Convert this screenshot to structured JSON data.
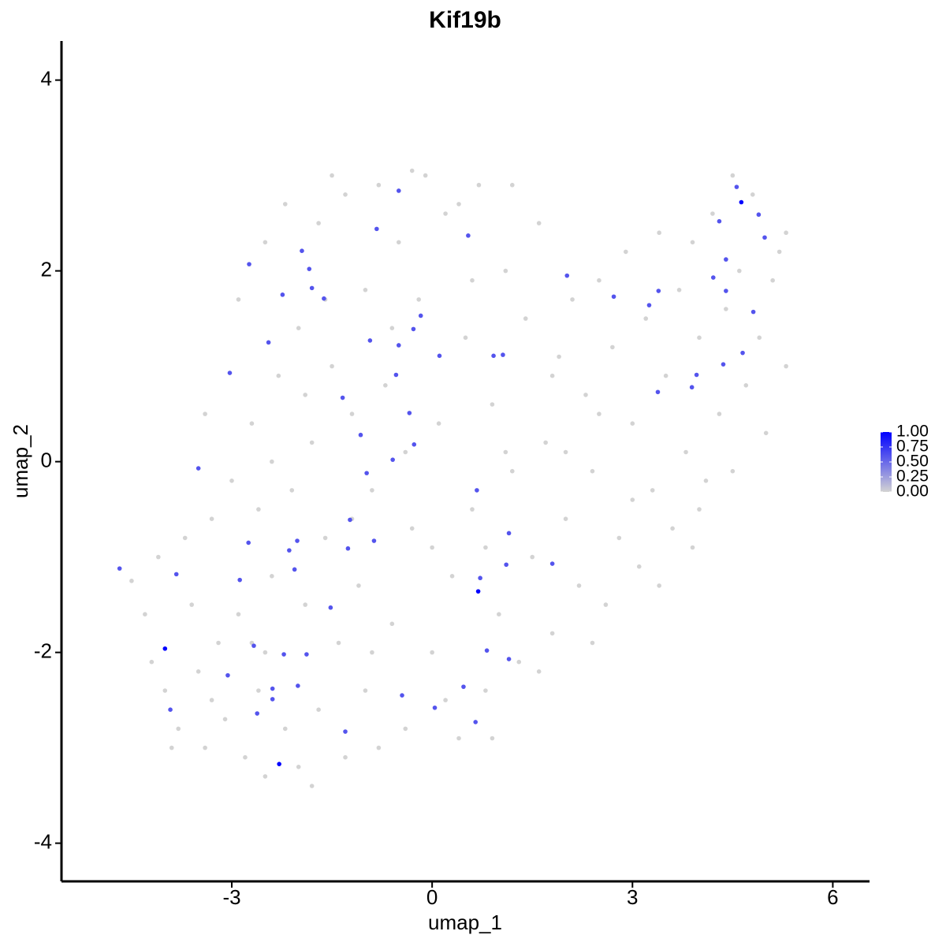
{
  "chart_data": {
    "type": "scatter",
    "title": "Kif19b",
    "x_label": "umap_1",
    "y_label": "umap_2",
    "xlim": [
      -5.55,
      6.55
    ],
    "ylim": [
      -4.4,
      4.41
    ],
    "xticks": [
      -3,
      0,
      3,
      6
    ],
    "yticks": [
      -4,
      -2,
      0,
      2,
      4
    ],
    "grid": false,
    "colorbar": {
      "lim": [
        0,
        1
      ],
      "low_color": "#d3d3d3",
      "high_color": "#0000ff",
      "ticks": [
        {
          "value": 0,
          "label": "0.00"
        },
        {
          "value": 0.25,
          "label": "0.25"
        },
        {
          "value": 0.5,
          "label": "0.50"
        },
        {
          "value": 0.75,
          "label": "0.75"
        },
        {
          "value": 1,
          "label": "1.00"
        }
      ]
    },
    "x": [
      -4.5,
      -4.3,
      -4.2,
      -4.0,
      -3.8,
      -3.6,
      -3.5,
      -3.4,
      -3.3,
      -3.2,
      -3.1,
      -3.0,
      -2.9,
      -2.8,
      -2.7,
      -2.6,
      -2.5,
      -2.5,
      -2.4,
      -2.3,
      -2.2,
      -2.1,
      -2.0,
      -2.0,
      -1.9,
      -1.8,
      -1.7,
      -1.7,
      -1.6,
      -1.5,
      -1.4,
      -1.3,
      -1.3,
      -1.2,
      -1.1,
      -1.0,
      -1.0,
      -0.9,
      -0.8,
      -0.8,
      -0.7,
      -0.6,
      -0.5,
      -0.4,
      -0.3,
      -0.2,
      -0.1,
      0.0,
      0.1,
      0.2,
      0.3,
      0.4,
      0.5,
      0.6,
      0.7,
      0.8,
      0.9,
      1.0,
      1.1,
      1.2,
      1.3,
      1.4,
      1.5,
      1.6,
      1.7,
      1.8,
      1.9,
      2.0,
      2.1,
      2.2,
      2.3,
      2.4,
      2.5,
      2.6,
      2.7,
      2.8,
      2.9,
      3.0,
      3.1,
      3.2,
      3.3,
      3.4,
      3.5,
      3.6,
      3.7,
      3.8,
      3.9,
      4.0,
      4.1,
      4.2,
      4.3,
      4.4,
      4.5,
      4.6,
      4.7,
      4.8,
      4.9,
      5.0,
      5.1,
      5.2,
      5.3,
      5.3,
      4.5,
      -2.5,
      -2.9,
      -2.2,
      -1.5,
      -0.3,
      0.4,
      1.2,
      -3.4,
      -3.7,
      -3.9,
      -4.1,
      -2.6,
      -1.8,
      -0.9,
      0.2,
      0.9,
      1.6,
      2.4,
      3.4,
      3.9,
      1.8,
      0.6,
      -0.6,
      -1.9,
      -2.7,
      -3.3,
      -1.2,
      0.0,
      1.1,
      2.0,
      3.0,
      -2.4,
      -1.6,
      -0.4,
      0.8,
      2.5,
      4.0,
      -4.68,
      -3.83,
      -4.0,
      -3.92,
      -3.5,
      -3.03,
      -2.74,
      -2.45,
      -2.24,
      -1.95,
      -1.84,
      -1.8,
      -1.62,
      -1.34,
      -1.07,
      -0.98,
      -1.23,
      -1.26,
      -0.87,
      -0.83,
      -0.5,
      -0.93,
      -0.5,
      -0.54,
      -0.34,
      -0.28,
      -0.17,
      -0.27,
      -0.59,
      0.11,
      0.54,
      0.92,
      1.06,
      0.67,
      1.15,
      1.11,
      0.72,
      0.69,
      1.8,
      0.82,
      1.15,
      0.47,
      0.65,
      0.04,
      -0.45,
      -1.3,
      -1.52,
      -1.88,
      -2.01,
      -2.22,
      -2.39,
      -2.39,
      -2.62,
      -2.67,
      -3.06,
      -2.29,
      -2.06,
      -2.02,
      -2.14,
      -2.75,
      -2.88,
      2.02,
      2.72,
      3.25,
      3.39,
      3.38,
      3.89,
      3.96,
      4.21,
      4.4,
      4.36,
      4.65,
      4.81,
      4.4,
      4.3,
      4.56,
      4.63,
      4.89,
      4.98
    ],
    "y": [
      -1.25,
      -1.6,
      -2.1,
      -2.4,
      -2.8,
      -1.5,
      -2.2,
      -3.0,
      -0.6,
      -1.9,
      -2.7,
      -0.2,
      -1.6,
      -3.1,
      0.4,
      -0.5,
      -2.0,
      -3.3,
      -1.2,
      0.9,
      -2.8,
      -0.3,
      1.4,
      -3.2,
      -1.5,
      0.2,
      2.5,
      -2.6,
      -0.8,
      1.0,
      -1.9,
      2.8,
      -3.1,
      0.5,
      -1.3,
      1.8,
      -2.4,
      -0.3,
      2.9,
      -3.0,
      0.8,
      -1.7,
      2.3,
      -2.8,
      -0.7,
      1.7,
      3.0,
      -2.0,
      0.4,
      2.6,
      -1.2,
      -2.9,
      1.3,
      -0.5,
      2.9,
      -2.4,
      0.6,
      -1.6,
      2.0,
      -0.1,
      -2.1,
      1.5,
      -1.0,
      2.5,
      0.2,
      -1.8,
      1.1,
      -0.6,
      1.7,
      -1.3,
      0.7,
      -0.1,
      1.9,
      -1.5,
      1.2,
      -0.8,
      2.2,
      0.4,
      -1.1,
      1.5,
      -0.3,
      2.4,
      0.9,
      -0.7,
      1.8,
      0.1,
      2.3,
      1.3,
      -0.2,
      2.6,
      0.5,
      1.6,
      -0.1,
      2.0,
      0.8,
      2.8,
      1.3,
      0.3,
      1.9,
      2.2,
      1.0,
      2.4,
      3.0,
      2.3,
      1.7,
      2.7,
      3.0,
      3.05,
      2.7,
      2.9,
      0.5,
      -0.8,
      -3.0,
      -1.0,
      -2.4,
      -3.4,
      -2.0,
      -2.5,
      -2.9,
      -2.2,
      -1.9,
      -1.3,
      -0.9,
      0.9,
      1.9,
      1.4,
      0.7,
      -1.9,
      -2.5,
      -0.6,
      -0.9,
      0.1,
      0.1,
      -0.4,
      0.0,
      1.7,
      0.1,
      -0.9,
      0.5,
      -0.5,
      -1.12,
      -1.18,
      -1.96,
      -2.6,
      -0.07,
      0.93,
      2.07,
      1.25,
      1.75,
      2.21,
      2.02,
      1.82,
      1.71,
      0.67,
      0.28,
      -0.12,
      -0.61,
      -0.91,
      -0.83,
      2.44,
      2.84,
      1.27,
      1.22,
      0.91,
      0.51,
      1.39,
      1.53,
      0.18,
      0.02,
      1.11,
      2.37,
      1.11,
      1.12,
      -0.3,
      -0.75,
      -1.08,
      -1.22,
      -1.36,
      -1.07,
      -1.98,
      -2.07,
      -2.36,
      -2.73,
      -2.58,
      -2.45,
      -2.83,
      -1.53,
      -2.02,
      -2.35,
      -2.02,
      -2.38,
      -2.49,
      -2.64,
      -1.93,
      -2.24,
      -3.17,
      -1.13,
      -0.83,
      -0.93,
      -0.85,
      -1.24,
      1.95,
      1.73,
      1.64,
      1.79,
      0.73,
      0.78,
      0.91,
      1.93,
      1.79,
      1.02,
      1.14,
      1.57,
      2.12,
      2.52,
      2.88,
      2.72,
      2.59,
      2.35
    ],
    "values": [
      0,
      0,
      0,
      0,
      0,
      0,
      0,
      0,
      0,
      0,
      0,
      0,
      0,
      0,
      0,
      0,
      0,
      0,
      0,
      0,
      0,
      0,
      0,
      0,
      0,
      0,
      0,
      0,
      0,
      0,
      0,
      0,
      0,
      0,
      0,
      0,
      0,
      0,
      0,
      0,
      0,
      0,
      0,
      0,
      0,
      0,
      0,
      0,
      0,
      0,
      0,
      0,
      0,
      0,
      0,
      0,
      0,
      0,
      0,
      0,
      0,
      0,
      0,
      0,
      0,
      0,
      0,
      0,
      0,
      0,
      0,
      0,
      0,
      0,
      0,
      0,
      0,
      0,
      0,
      0,
      0,
      0,
      0,
      0,
      0,
      0,
      0,
      0,
      0,
      0,
      0,
      0,
      0,
      0,
      0,
      0,
      0,
      0,
      0,
      0,
      0,
      0,
      0,
      0,
      0,
      0,
      0,
      0,
      0,
      0,
      0,
      0,
      0,
      0,
      0,
      0,
      0,
      0,
      0,
      0,
      0,
      0,
      0,
      0,
      0,
      0,
      0,
      0,
      0,
      0,
      0,
      0,
      0,
      0,
      0,
      0,
      0,
      0,
      0,
      0,
      0.6,
      0.6,
      1,
      0.6,
      0.6,
      0.6,
      0.6,
      0.6,
      0.6,
      0.6,
      0.6,
      0.6,
      0.6,
      0.6,
      0.6,
      0.6,
      0.6,
      0.6,
      0.6,
      0.6,
      0.6,
      0.6,
      0.6,
      0.6,
      0.6,
      0.6,
      0.6,
      0.6,
      0.6,
      0.6,
      0.6,
      0.6,
      0.6,
      0.6,
      0.6,
      0.6,
      0.6,
      1,
      0.6,
      0.6,
      0.6,
      0.6,
      0.6,
      0.6,
      0.6,
      0.6,
      0.6,
      0.6,
      0.6,
      0.6,
      0.6,
      0.6,
      0.6,
      0.6,
      0.6,
      1,
      0.6,
      0.6,
      0.6,
      0.6,
      0.6,
      0.6,
      0.6,
      0.6,
      0.6,
      0.6,
      0.6,
      0.6,
      0.6,
      0.6,
      0.6,
      0.6,
      0.6,
      0.6,
      0.6,
      0.6,
      1,
      0.6,
      0.6
    ]
  }
}
